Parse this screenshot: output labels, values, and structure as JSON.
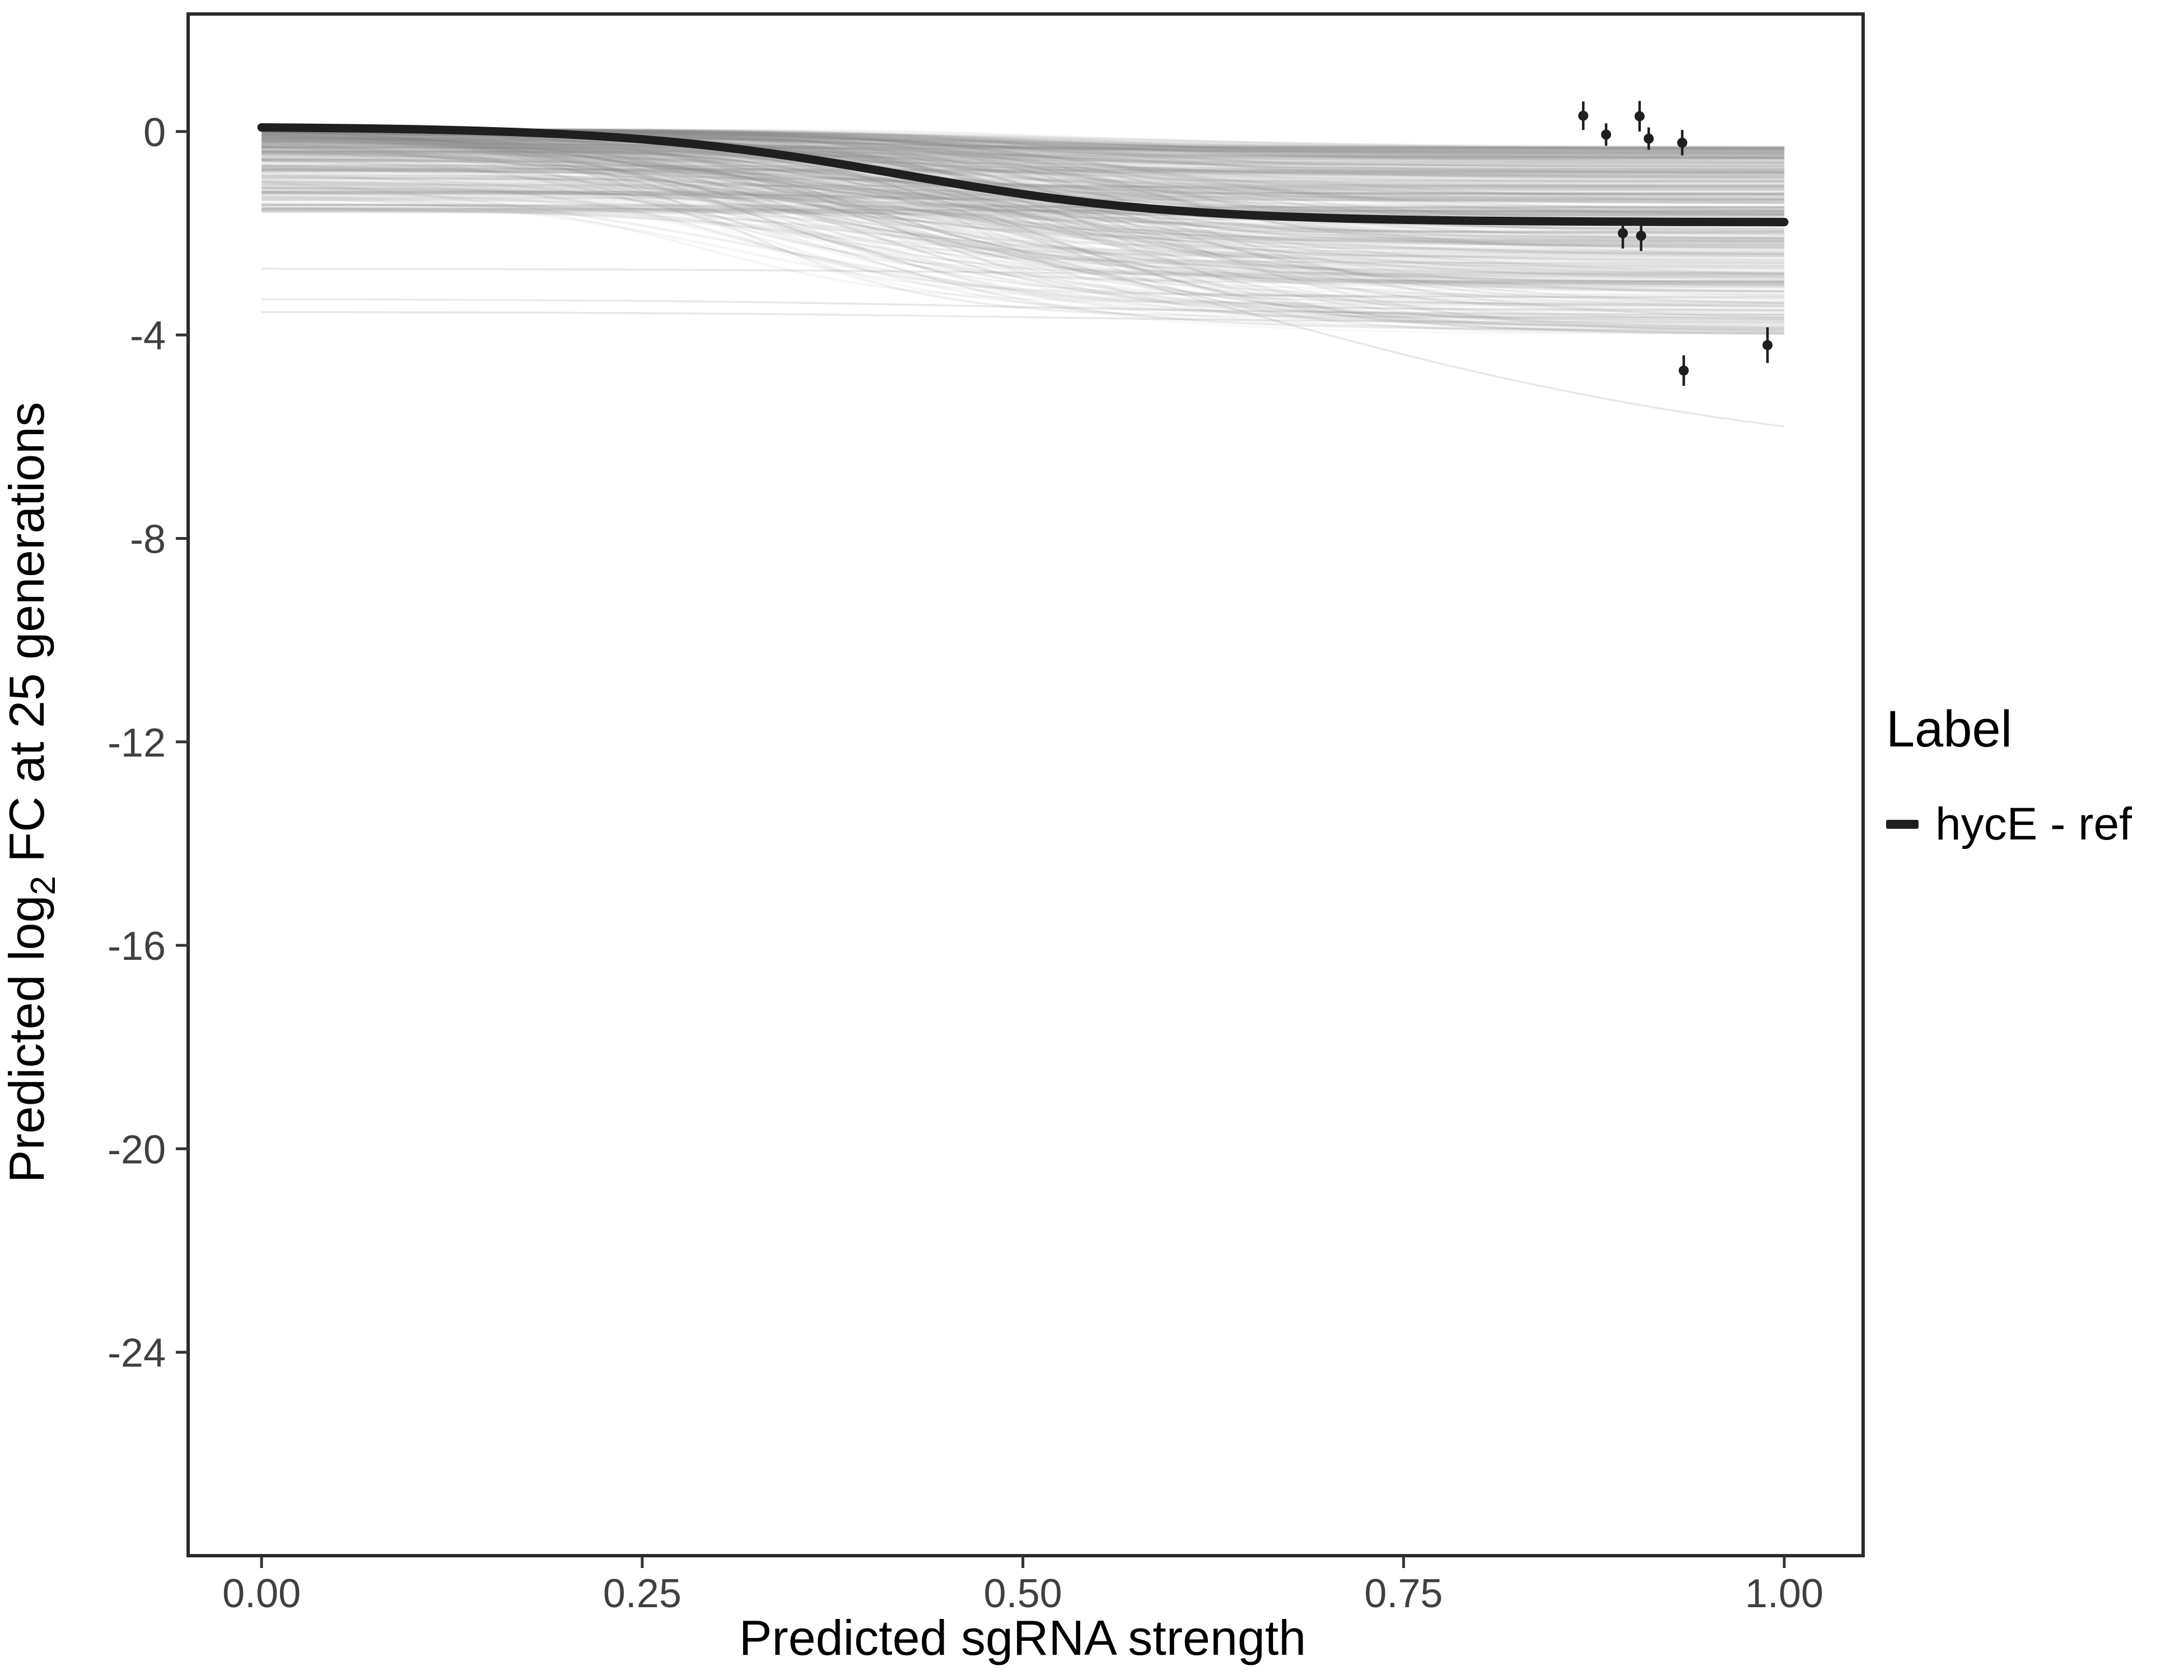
{
  "chart_data": {
    "type": "line",
    "title": "",
    "xlabel": "Predicted sgRNA strength",
    "ylabel_parts": {
      "pre": "Predicted log",
      "sub": "2",
      "post": " FC at 25 generations"
    },
    "x_ticks": [
      "0.00",
      "0.25",
      "0.50",
      "0.75",
      "1.00"
    ],
    "x_tick_values": [
      0,
      0.25,
      0.5,
      0.75,
      1.0
    ],
    "y_ticks": [
      "0",
      "-4",
      "-8",
      "-12",
      "-16",
      "-20",
      "-24"
    ],
    "y_tick_values": [
      0,
      -4,
      -8,
      -12,
      -16,
      -20,
      -24
    ],
    "x_domain": [
      -0.0482,
      1.0518
    ],
    "y_domain": [
      -28.0,
      2.31
    ],
    "grid": "off",
    "legend_position": "right",
    "main_series": {
      "name": "hycE - ref",
      "color": "#1f1f1f",
      "sigmoid": {
        "start": 0.08,
        "end": -1.78,
        "x0": 0.42,
        "k": 11
      },
      "curve_samples": {
        "x": [
          0,
          0.1,
          0.2,
          0.25,
          0.3,
          0.35,
          0.4,
          0.45,
          0.5,
          0.55,
          0.6,
          0.7,
          0.8,
          0.9,
          1.0
        ],
        "y": [
          0.08,
          0.04,
          -0.06,
          -0.15,
          -0.3,
          -0.5,
          -0.74,
          -1.0,
          -1.23,
          -1.42,
          -1.55,
          -1.7,
          -1.75,
          -1.77,
          -1.78
        ]
      }
    },
    "points": [
      {
        "x": 0.868,
        "y": 0.31,
        "err": 0.28
      },
      {
        "x": 0.883,
        "y": -0.06,
        "err": 0.22
      },
      {
        "x": 0.905,
        "y": 0.3,
        "err": 0.3
      },
      {
        "x": 0.911,
        "y": -0.14,
        "err": 0.22
      },
      {
        "x": 0.933,
        "y": -0.22,
        "err": 0.25
      },
      {
        "x": 0.894,
        "y": -2.0,
        "err": 0.3
      },
      {
        "x": 0.906,
        "y": -2.05,
        "err": 0.3
      },
      {
        "x": 0.934,
        "y": -4.7,
        "err": 0.3
      },
      {
        "x": 0.989,
        "y": -4.2,
        "err": 0.35
      }
    ],
    "ensemble": {
      "description": "background sigmoid fits for all other genes, gray translucent",
      "count": 420,
      "color": "#8a8a8a",
      "seed": 42,
      "start_range": [
        -1.6,
        0.05
      ],
      "end_range": [
        -4.0,
        -0.3
      ],
      "x0_range": [
        0.28,
        0.6
      ],
      "k_range": [
        7,
        16
      ],
      "outliers": [
        {
          "start": -0.3,
          "end": -5.8,
          "x0": 0.62,
          "k": 5
        },
        {
          "start": -2.7,
          "end": -2.85,
          "x0": 0.5,
          "k": 8
        },
        {
          "start": -3.3,
          "end": -3.6,
          "x0": 0.5,
          "k": 8
        },
        {
          "start": -3.55,
          "end": -3.75,
          "x0": 0.5,
          "k": 8
        }
      ]
    }
  },
  "legend": {
    "title": "Label",
    "items": [
      {
        "label": "hycE - ref",
        "color": "#1f1f1f"
      }
    ]
  }
}
